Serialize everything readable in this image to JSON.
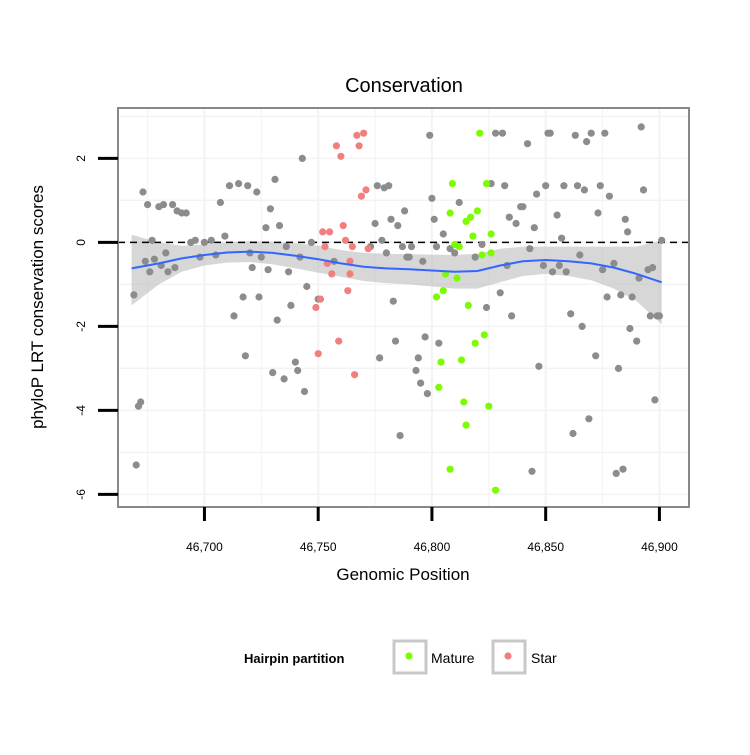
{
  "chart_data": {
    "type": "scatter",
    "title": "Conservation",
    "xlabel": "Genomic Position",
    "ylabel": "phyloP LRT conservation scores",
    "xlim": [
      46662,
      46913
    ],
    "ylim": [
      -6.3,
      3.2
    ],
    "x_ticks": [
      46700,
      46750,
      46800,
      46850,
      46900
    ],
    "x_tick_labels": [
      "46,700",
      "46,750",
      "46,800",
      "46,850",
      "46,900"
    ],
    "y_ticks": [
      -6,
      -4,
      -2,
      0,
      2
    ],
    "y_tick_labels": [
      "-6",
      "-4",
      "-2",
      "0",
      "2"
    ],
    "grid": true,
    "reference_line": {
      "y": 0,
      "style": "dashed"
    },
    "colors": {
      "other": "#8c8c8c",
      "Mature": "#7cfc00",
      "Star": "#f08080",
      "smooth": "#3366ff",
      "ribbon": "#bdbdbd"
    },
    "legend": {
      "title": "Hairpin partition",
      "position": "bottom",
      "entries": [
        {
          "label": "Mature",
          "color": "#7cfc00"
        },
        {
          "label": "Star",
          "color": "#f08080"
        }
      ]
    },
    "series": [
      {
        "key": "other",
        "points": [
          [
            46669,
            -1.25
          ],
          [
            46670,
            -5.3
          ],
          [
            46671,
            -3.9
          ],
          [
            46672,
            -3.8
          ],
          [
            46673,
            1.2
          ],
          [
            46674,
            -0.45
          ],
          [
            46675,
            0.9
          ],
          [
            46676,
            -0.7
          ],
          [
            46677,
            0.05
          ],
          [
            46678,
            -0.4
          ],
          [
            46680,
            0.85
          ],
          [
            46681,
            -0.55
          ],
          [
            46682,
            0.9
          ],
          [
            46683,
            -0.25
          ],
          [
            46684,
            -0.7
          ],
          [
            46686,
            0.9
          ],
          [
            46687,
            -0.6
          ],
          [
            46688,
            0.75
          ],
          [
            46690,
            0.7
          ],
          [
            46692,
            0.7
          ],
          [
            46694,
            0.0
          ],
          [
            46696,
            0.05
          ],
          [
            46698,
            -0.35
          ],
          [
            46700,
            0.0
          ],
          [
            46703,
            0.05
          ],
          [
            46705,
            -0.3
          ],
          [
            46707,
            0.95
          ],
          [
            46709,
            0.15
          ],
          [
            46711,
            1.35
          ],
          [
            46713,
            -1.75
          ],
          [
            46715,
            1.4
          ],
          [
            46717,
            -1.3
          ],
          [
            46718,
            -2.7
          ],
          [
            46719,
            1.35
          ],
          [
            46720,
            -0.25
          ],
          [
            46721,
            -0.6
          ],
          [
            46723,
            1.2
          ],
          [
            46724,
            -1.3
          ],
          [
            46725,
            -0.35
          ],
          [
            46727,
            0.35
          ],
          [
            46728,
            -0.65
          ],
          [
            46729,
            0.8
          ],
          [
            46730,
            -3.1
          ],
          [
            46731,
            1.5
          ],
          [
            46732,
            -1.85
          ],
          [
            46733,
            0.4
          ],
          [
            46735,
            -3.25
          ],
          [
            46736,
            -0.1
          ],
          [
            46737,
            -0.7
          ],
          [
            46738,
            -1.5
          ],
          [
            46740,
            -2.85
          ],
          [
            46741,
            -3.05
          ],
          [
            46742,
            -0.35
          ],
          [
            46743,
            2.0
          ],
          [
            46744,
            -3.55
          ],
          [
            46745,
            -1.05
          ],
          [
            46747,
            0.0
          ],
          [
            46750,
            -1.35
          ],
          [
            46773,
            -0.1
          ],
          [
            46775,
            0.45
          ],
          [
            46776,
            1.35
          ],
          [
            46777,
            -2.75
          ],
          [
            46778,
            0.05
          ],
          [
            46779,
            1.3
          ],
          [
            46780,
            -0.25
          ],
          [
            46781,
            1.35
          ],
          [
            46782,
            0.55
          ],
          [
            46783,
            -1.4
          ],
          [
            46784,
            -2.35
          ],
          [
            46785,
            0.4
          ],
          [
            46786,
            -4.6
          ],
          [
            46787,
            -0.1
          ],
          [
            46788,
            0.75
          ],
          [
            46789,
            -0.35
          ],
          [
            46790,
            -0.35
          ],
          [
            46791,
            -0.1
          ],
          [
            46793,
            -3.05
          ],
          [
            46794,
            -2.75
          ],
          [
            46795,
            -3.35
          ],
          [
            46796,
            -0.45
          ],
          [
            46797,
            -2.25
          ],
          [
            46798,
            -3.6
          ],
          [
            46799,
            2.55
          ],
          [
            46800,
            1.05
          ],
          [
            46801,
            0.55
          ],
          [
            46802,
            -0.1
          ],
          [
            46803,
            -2.4
          ],
          [
            46805,
            0.2
          ],
          [
            46808,
            -0.15
          ],
          [
            46810,
            -0.25
          ],
          [
            46812,
            0.95
          ],
          [
            46819,
            -0.35
          ],
          [
            46822,
            -0.05
          ],
          [
            46824,
            -1.55
          ],
          [
            46826,
            1.4
          ],
          [
            46828,
            2.6
          ],
          [
            46830,
            -1.2
          ],
          [
            46831,
            2.6
          ],
          [
            46832,
            1.35
          ],
          [
            46833,
            -0.55
          ],
          [
            46834,
            0.6
          ],
          [
            46835,
            -1.75
          ],
          [
            46837,
            0.45
          ],
          [
            46839,
            0.85
          ],
          [
            46840,
            0.85
          ],
          [
            46842,
            2.35
          ],
          [
            46843,
            -0.15
          ],
          [
            46844,
            -5.45
          ],
          [
            46845,
            0.35
          ],
          [
            46846,
            1.15
          ],
          [
            46847,
            -2.95
          ],
          [
            46849,
            -0.55
          ],
          [
            46850,
            1.35
          ],
          [
            46851,
            2.6
          ],
          [
            46852,
            2.6
          ],
          [
            46853,
            -0.7
          ],
          [
            46855,
            0.65
          ],
          [
            46856,
            -0.55
          ],
          [
            46857,
            0.1
          ],
          [
            46858,
            1.35
          ],
          [
            46859,
            -0.7
          ],
          [
            46861,
            -1.7
          ],
          [
            46862,
            -4.55
          ],
          [
            46863,
            2.55
          ],
          [
            46864,
            1.35
          ],
          [
            46865,
            -0.3
          ],
          [
            46866,
            -2.0
          ],
          [
            46867,
            1.25
          ],
          [
            46868,
            2.4
          ],
          [
            46869,
            -4.2
          ],
          [
            46870,
            2.6
          ],
          [
            46872,
            -2.7
          ],
          [
            46873,
            0.7
          ],
          [
            46874,
            1.35
          ],
          [
            46875,
            -0.65
          ],
          [
            46876,
            2.6
          ],
          [
            46877,
            -1.3
          ],
          [
            46878,
            1.1
          ],
          [
            46880,
            -0.5
          ],
          [
            46881,
            -5.5
          ],
          [
            46882,
            -3.0
          ],
          [
            46883,
            -1.25
          ],
          [
            46884,
            -5.4
          ],
          [
            46885,
            0.55
          ],
          [
            46886,
            0.25
          ],
          [
            46887,
            -2.05
          ],
          [
            46888,
            -1.3
          ],
          [
            46890,
            -2.35
          ],
          [
            46891,
            -0.85
          ],
          [
            46892,
            2.75
          ],
          [
            46893,
            1.25
          ],
          [
            46895,
            -0.65
          ],
          [
            46896,
            -1.75
          ],
          [
            46897,
            -0.6
          ],
          [
            46898,
            -3.75
          ],
          [
            46899,
            -1.75
          ],
          [
            46900,
            -1.75
          ],
          [
            46901,
            0.05
          ],
          [
            46757,
            -0.45
          ]
        ]
      },
      {
        "key": "Star",
        "name": "Star",
        "points": [
          [
            46749,
            -1.55
          ],
          [
            46750,
            -2.65
          ],
          [
            46751,
            -1.35
          ],
          [
            46752,
            0.25
          ],
          [
            46753,
            -0.1
          ],
          [
            46754,
            -0.5
          ],
          [
            46755,
            0.25
          ],
          [
            46756,
            -0.75
          ],
          [
            46758,
            2.3
          ],
          [
            46759,
            -2.35
          ],
          [
            46760,
            2.05
          ],
          [
            46761,
            0.4
          ],
          [
            46762,
            0.05
          ],
          [
            46763,
            -1.15
          ],
          [
            46764,
            -0.45
          ],
          [
            46764,
            -0.75
          ],
          [
            46765,
            -0.1
          ],
          [
            46766,
            -3.15
          ],
          [
            46767,
            2.55
          ],
          [
            46768,
            2.3
          ],
          [
            46769,
            1.1
          ],
          [
            46770,
            2.6
          ],
          [
            46771,
            1.25
          ],
          [
            46772,
            -0.15
          ]
        ]
      },
      {
        "key": "Mature",
        "name": "Mature",
        "points": [
          [
            46802,
            -1.3
          ],
          [
            46803,
            -3.45
          ],
          [
            46804,
            -2.85
          ],
          [
            46805,
            -1.15
          ],
          [
            46806,
            -0.75
          ],
          [
            46808,
            -5.4
          ],
          [
            46808,
            0.7
          ],
          [
            46809,
            1.4
          ],
          [
            46810,
            -0.05
          ],
          [
            46811,
            -0.85
          ],
          [
            46812,
            -0.1
          ],
          [
            46813,
            -2.8
          ],
          [
            46814,
            -3.8
          ],
          [
            46815,
            0.5
          ],
          [
            46815,
            -4.35
          ],
          [
            46816,
            -1.5
          ],
          [
            46817,
            0.6
          ],
          [
            46818,
            0.15
          ],
          [
            46819,
            -2.4
          ],
          [
            46820,
            0.75
          ],
          [
            46821,
            2.6
          ],
          [
            46822,
            -0.3
          ],
          [
            46823,
            -2.2
          ],
          [
            46824,
            1.4
          ],
          [
            46825,
            -3.9
          ],
          [
            46826,
            0.2
          ],
          [
            46826,
            -0.25
          ],
          [
            46828,
            -5.9
          ]
        ]
      }
    ],
    "smooth": {
      "x": [
        46668,
        46680,
        46690,
        46700,
        46710,
        46720,
        46730,
        46740,
        46750,
        46760,
        46770,
        46780,
        46790,
        46800,
        46810,
        46820,
        46830,
        46840,
        46850,
        46860,
        46870,
        46880,
        46890,
        46901
      ],
      "y": [
        -0.62,
        -0.5,
        -0.38,
        -0.3,
        -0.24,
        -0.22,
        -0.25,
        -0.32,
        -0.4,
        -0.5,
        -0.58,
        -0.62,
        -0.64,
        -0.67,
        -0.7,
        -0.68,
        -0.55,
        -0.45,
        -0.42,
        -0.45,
        -0.5,
        -0.6,
        -0.75,
        -0.95
      ],
      "lower": [
        -1.5,
        -1.0,
        -0.7,
        -0.55,
        -0.48,
        -0.47,
        -0.52,
        -0.62,
        -0.72,
        -0.82,
        -0.92,
        -0.97,
        -1.0,
        -1.05,
        -1.1,
        -1.1,
        -0.95,
        -0.8,
        -0.75,
        -0.8,
        -0.9,
        -1.1,
        -1.4,
        -1.95
      ],
      "upper": [
        0.18,
        0.0,
        -0.08,
        -0.05,
        0.0,
        0.03,
        0.02,
        -0.02,
        -0.08,
        -0.18,
        -0.25,
        -0.27,
        -0.28,
        -0.29,
        -0.3,
        -0.27,
        -0.15,
        -0.1,
        -0.1,
        -0.1,
        -0.1,
        -0.1,
        -0.1,
        0.05
      ]
    }
  }
}
